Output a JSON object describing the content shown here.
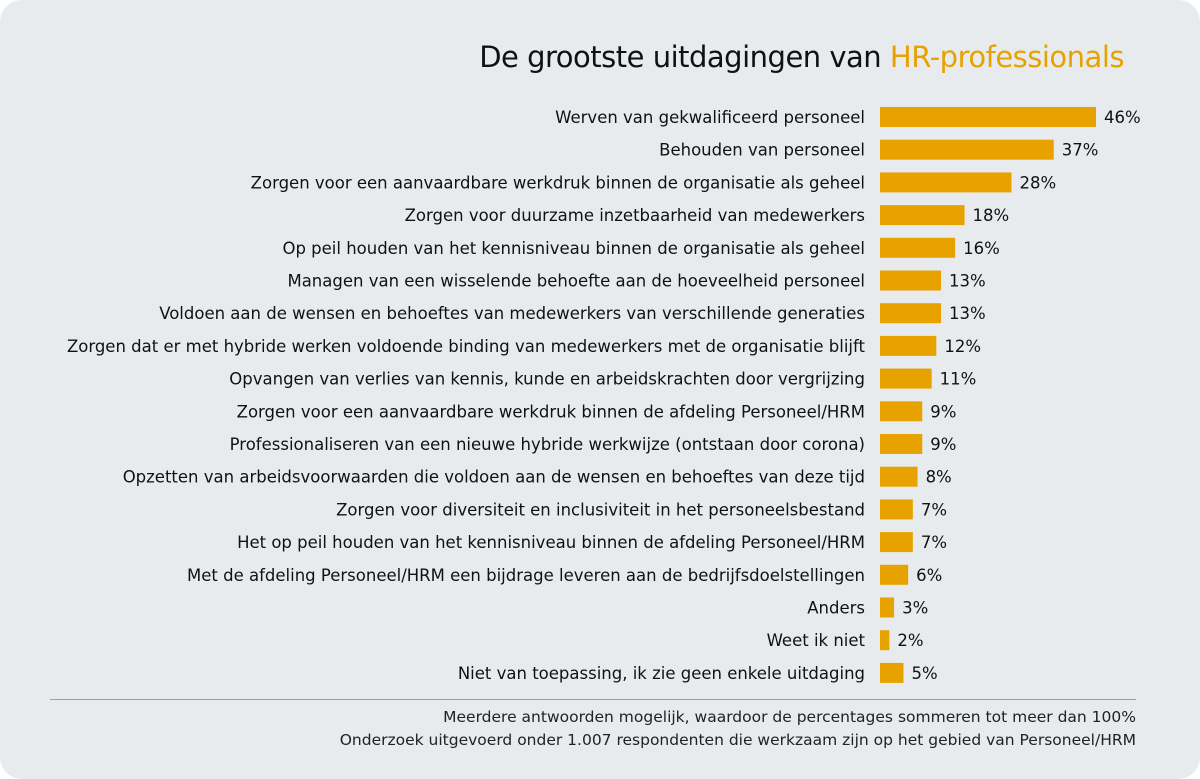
{
  "title": {
    "prefix": "De grootste uitdagingen van ",
    "highlight": "HR-professionals"
  },
  "colors": {
    "bar": "#e8a200",
    "highlight": "#e8a200",
    "background": "#e8ebee",
    "text": "#111111"
  },
  "chart_data": {
    "type": "bar",
    "orientation": "horizontal",
    "title": "De grootste uitdagingen van HR-professionals",
    "categories": [
      "Werven van gekwalificeerd personeel",
      "Behouden van personeel",
      "Zorgen voor een aanvaardbare werkdruk binnen de organisatie als geheel",
      "Zorgen voor duurzame inzetbaarheid van medewerkers",
      "Op peil houden van het kennisniveau binnen de organisatie als geheel",
      "Managen van een wisselende behoefte aan de hoeveelheid personeel",
      "Voldoen aan de wensen en behoeftes van medewerkers van verschillende generaties",
      "Zorgen dat er met hybride werken voldoende binding van medewerkers met de organisatie blijft",
      "Opvangen van verlies van kennis, kunde en arbeidskrachten door vergrijzing",
      "Zorgen voor een aanvaardbare werkdruk binnen de afdeling Personeel/HRM",
      "Professionaliseren van een nieuwe hybride werkwijze (ontstaan door corona)",
      "Opzetten van arbeidsvoorwaarden die voldoen aan de wensen en behoeftes van deze tijd",
      "Zorgen voor diversiteit en inclusiviteit in het personeelsbestand",
      "Het op peil houden van het kennisniveau binnen de afdeling Personeel/HRM",
      "Met de afdeling Personeel/HRM een bijdrage leveren aan de bedrijfsdoelstellingen",
      "Anders",
      "Weet ik niet",
      "Niet van toepassing, ik zie geen enkele uitdaging"
    ],
    "values": [
      46,
      37,
      28,
      18,
      16,
      13,
      13,
      12,
      11,
      9,
      9,
      8,
      7,
      7,
      6,
      3,
      2,
      5
    ],
    "value_labels": [
      "46%",
      "37%",
      "28%",
      "18%",
      "16%",
      "13%",
      "13%",
      "12%",
      "11%",
      "9%",
      "9%",
      "8%",
      "7%",
      "7%",
      "6%",
      "3%",
      "2%",
      "5%"
    ],
    "unit": "%",
    "grid": false,
    "axes_visible": false
  },
  "footer": {
    "line1": "Meerdere antwoorden mogelijk, waardoor de percentages sommeren tot meer dan 100%",
    "line2": "Onderzoek uitgevoerd onder 1.007 respondenten die werkzaam zijn op het gebied van Personeel/HRM"
  }
}
